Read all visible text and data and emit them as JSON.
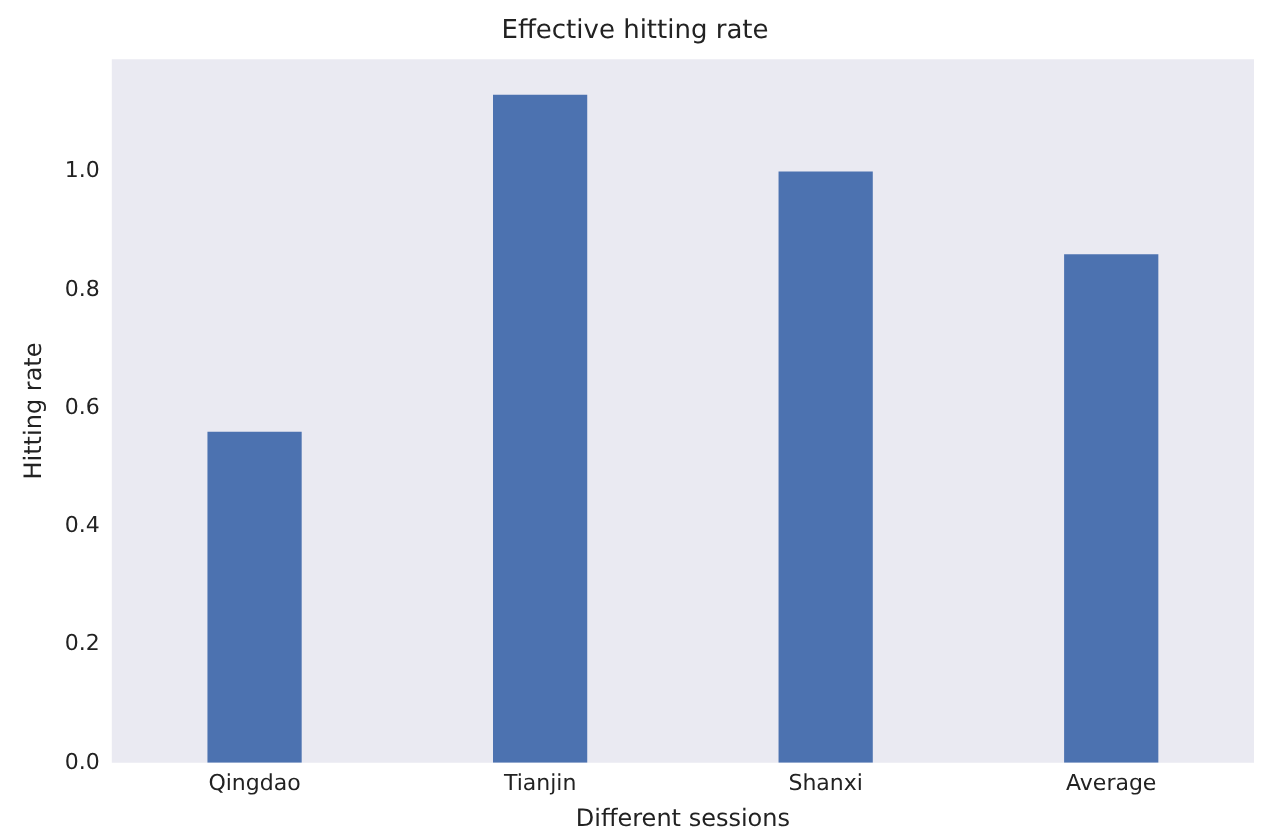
{
  "chart_data": {
    "type": "bar",
    "title": "Effective hitting rate",
    "xlabel": "Different sessions",
    "ylabel": "Hitting rate",
    "categories": [
      "Qingdao",
      "Tianjin",
      "Shanxi",
      "Average"
    ],
    "values": [
      0.56,
      1.13,
      1.0,
      0.86
    ],
    "color": "#4c72b0",
    "ylim": [
      0,
      1.19
    ],
    "yticks": [
      {
        "value": 0,
        "label": "0.0"
      },
      {
        "value": 0.2,
        "label": "0.2"
      },
      {
        "value": 0.4,
        "label": "0.4"
      },
      {
        "value": 0.6,
        "label": "0.6"
      },
      {
        "value": 0.8,
        "label": "0.8"
      },
      {
        "value": 1.0,
        "label": "1.0"
      }
    ],
    "grid": false,
    "legend": false
  }
}
